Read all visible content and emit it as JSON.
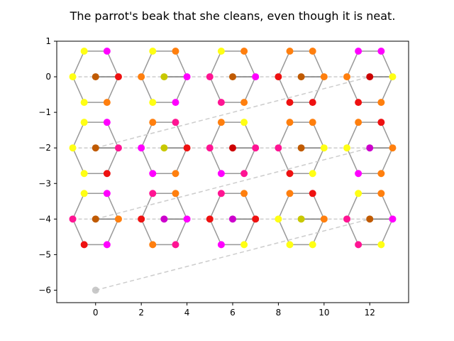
{
  "chart_data": {
    "type": "scatter",
    "title": "The parrot's beak that she cleans, even though it is neat.",
    "xlabel": "",
    "ylabel": "",
    "xlim": [
      -1.7,
      13.7
    ],
    "ylim": [
      -6.35,
      1.0
    ],
    "xticks": [
      0,
      2,
      4,
      6,
      8,
      10,
      12
    ],
    "xtick_labels": [
      "0",
      "2",
      "4",
      "6",
      "8",
      "10",
      "12"
    ],
    "yticks": [
      1,
      0,
      -1,
      -2,
      -3,
      -4,
      -5,
      -6
    ],
    "ytick_labels": [
      "1",
      "0",
      "−1",
      "−2",
      "−3",
      "−4",
      "−5",
      "−6"
    ],
    "grid": false,
    "colors": {
      "red": "#ee1111",
      "orange": "#ff7f0e",
      "yellow": "#ffff14",
      "magenta": "#ff00ff",
      "pink": "#ff1493",
      "brown": "#c05a00",
      "darkred": "#cc0000",
      "olive": "#c8c800",
      "purple": "#cc00cc",
      "ring_line": "#999999",
      "chain_line": "#cccccc",
      "grey_node": "#bbbbbb"
    },
    "rings": [
      {
        "center": [
          0,
          0
        ],
        "atoms": [
          "yellow",
          "yellow",
          "magenta",
          "red",
          "orange",
          "yellow"
        ],
        "center_color": "brown"
      },
      {
        "center": [
          3,
          0
        ],
        "atoms": [
          "orange",
          "yellow",
          "orange",
          "magenta",
          "magenta",
          "yellow"
        ],
        "center_color": "olive"
      },
      {
        "center": [
          6,
          0
        ],
        "atoms": [
          "pink",
          "yellow",
          "orange",
          "magenta",
          "orange",
          "pink"
        ],
        "center_color": "brown"
      },
      {
        "center": [
          9,
          0
        ],
        "atoms": [
          "red",
          "orange",
          "orange",
          "orange",
          "red",
          "red"
        ],
        "center_color": "brown"
      },
      {
        "center": [
          12,
          0
        ],
        "atoms": [
          "orange",
          "magenta",
          "magenta",
          "yellow",
          "orange",
          "red"
        ],
        "center_color": "darkred"
      },
      {
        "center": [
          0,
          -2
        ],
        "atoms": [
          "yellow",
          "yellow",
          "magenta",
          "pink",
          "red",
          "yellow"
        ],
        "center_color": "brown"
      },
      {
        "center": [
          3,
          -2
        ],
        "atoms": [
          "magenta",
          "orange",
          "pink",
          "red",
          "orange",
          "magenta"
        ],
        "center_color": "olive"
      },
      {
        "center": [
          6,
          -2
        ],
        "atoms": [
          "pink",
          "orange",
          "yellow",
          "pink",
          "pink",
          "magenta"
        ],
        "center_color": "darkred"
      },
      {
        "center": [
          9,
          -2
        ],
        "atoms": [
          "pink",
          "orange",
          "orange",
          "yellow",
          "yellow",
          "red"
        ],
        "center_color": "brown"
      },
      {
        "center": [
          12,
          -2
        ],
        "atoms": [
          "yellow",
          "orange",
          "red",
          "orange",
          "orange",
          "magenta"
        ],
        "center_color": "purple"
      },
      {
        "center": [
          0,
          -4
        ],
        "atoms": [
          "pink",
          "yellow",
          "magenta",
          "orange",
          "magenta",
          "red"
        ],
        "center_color": "brown"
      },
      {
        "center": [
          3,
          -4
        ],
        "atoms": [
          "red",
          "pink",
          "orange",
          "magenta",
          "pink",
          "orange"
        ],
        "center_color": "purple"
      },
      {
        "center": [
          6,
          -4
        ],
        "atoms": [
          "red",
          "pink",
          "orange",
          "red",
          "yellow",
          "magenta"
        ],
        "center_color": "purple"
      },
      {
        "center": [
          9,
          -4
        ],
        "atoms": [
          "yellow",
          "orange",
          "red",
          "orange",
          "yellow",
          "yellow"
        ],
        "center_color": "olive"
      },
      {
        "center": [
          12,
          -4
        ],
        "atoms": [
          "pink",
          "yellow",
          "orange",
          "magenta",
          "yellow",
          "pink"
        ],
        "center_color": "brown"
      }
    ],
    "chains": [
      {
        "from": [
          0,
          -2
        ],
        "to": [
          12,
          0
        ]
      },
      {
        "from": [
          0,
          -4
        ],
        "to": [
          12,
          -2
        ]
      },
      {
        "from": [
          0,
          -6
        ],
        "to": [
          12,
          -4
        ]
      }
    ],
    "extra_points": [
      {
        "x": 0,
        "y": -6,
        "color": "grey_node"
      }
    ]
  }
}
